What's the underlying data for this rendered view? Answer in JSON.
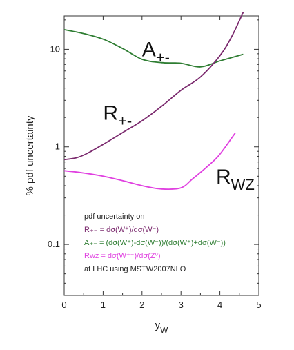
{
  "chart_data": {
    "type": "line",
    "xlabel": "y_W",
    "ylabel": "% pdf uncertainty",
    "xlim": [
      0,
      5
    ],
    "ylim": [
      0.03,
      22
    ],
    "log_y": true,
    "grid": false,
    "x_ticks": [
      "0",
      "1",
      "2",
      "3",
      "4",
      "5"
    ],
    "y_ticks": [
      "0.1",
      "1",
      "10"
    ],
    "series": [
      {
        "name": "A+-",
        "color": "#2e7d32",
        "x": [
          0,
          0.5,
          1,
          1.5,
          2,
          2.5,
          3,
          3.5,
          4,
          4.6
        ],
        "y": [
          15.9,
          14.5,
          12.7,
          10.2,
          7.9,
          7.3,
          7.2,
          6.6,
          7.6,
          8.9
        ]
      },
      {
        "name": "R+-",
        "color": "#7b2a6e",
        "x": [
          0,
          0.3,
          0.6,
          1,
          1.5,
          2,
          2.5,
          3,
          3.5,
          4,
          4.3,
          4.6
        ],
        "y": [
          0.74,
          0.77,
          0.86,
          1.06,
          1.4,
          1.85,
          2.6,
          3.8,
          5.2,
          8.6,
          13.4,
          24
        ]
      },
      {
        "name": "RWZ",
        "color": "#e040e0",
        "x": [
          0,
          0.5,
          1,
          1.5,
          2,
          2.5,
          3,
          3.3,
          3.7,
          4,
          4.4
        ],
        "y": [
          0.57,
          0.54,
          0.5,
          0.45,
          0.4,
          0.37,
          0.38,
          0.47,
          0.64,
          0.84,
          1.4
        ]
      }
    ],
    "series_labels": [
      {
        "base": "A",
        "sub": "+-",
        "x": 2.0,
        "y": 8.5
      },
      {
        "base": "R",
        "sub": "+-",
        "x": 1.0,
        "y": 1.9
      },
      {
        "base": "R",
        "sub": "WZ",
        "x": 3.9,
        "y": 0.42
      }
    ],
    "legend": {
      "position": "bottom-left",
      "lines": [
        {
          "text": "pdf uncertainty on",
          "color": "#222222"
        },
        {
          "text": "R₊₋ = dσ(W⁺)/dσ(W⁻)",
          "color": "#7b2a6e"
        },
        {
          "text": "A₊₋ = (dσ(W⁺)-dσ(W⁻))/(dσ(W⁺)+dσ(W⁻))",
          "color": "#2e7d32"
        },
        {
          "text": "Rᴡᴢ = dσ(W⁺⁻)/dσ(Z⁰)",
          "color": "#e040e0"
        },
        {
          "text": "at LHC using MSTW2007NLO",
          "color": "#222222"
        }
      ]
    }
  }
}
